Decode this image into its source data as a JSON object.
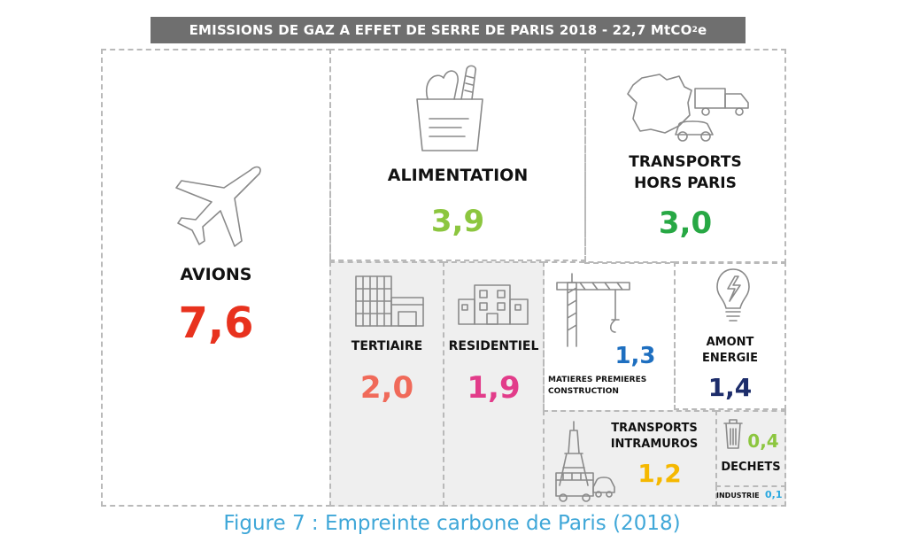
{
  "header": {
    "title_main": "EMISSIONS DE GAZ A EFFET DE SERRE DE PARIS 2018 - 22,7 MtCO",
    "title_sub": "2",
    "title_end": "e"
  },
  "tiles": {
    "avions": {
      "label": "AVIONS",
      "value": "7,6",
      "color": "#e8321e",
      "icon": "airplane-icon"
    },
    "alimentation": {
      "label": "ALIMENTATION",
      "value": "3,9",
      "color": "#8cc63f",
      "icon": "grocery-bag-icon"
    },
    "transports_hors_paris": {
      "label_line1": "TRANSPORTS",
      "label_line2": "HORS PARIS",
      "value": "3,0",
      "color": "#27a844",
      "icon": "france-truck-car-icon"
    },
    "tertiaire": {
      "label": "TERTIAIRE",
      "value": "2,0",
      "color": "#f06a5a",
      "icon": "office-building-icon"
    },
    "residentiel": {
      "label": "RESIDENTIEL",
      "value": "1,9",
      "color": "#e23c8a",
      "icon": "apartment-building-icon"
    },
    "matieres": {
      "label_line1": "MATIERES PREMIERES",
      "label_line2": "CONSTRUCTION",
      "value": "1,3",
      "color": "#1e6fc0",
      "icon": "crane-icon"
    },
    "amont_energie": {
      "label_line1": "AMONT",
      "label_line2": "ENERGIE",
      "value": "1,4",
      "color": "#1d2d6b",
      "icon": "lightbulb-icon"
    },
    "transports_intramuros": {
      "label_line1": "TRANSPORTS",
      "label_line2": "INTRAMUROS",
      "value": "1,2",
      "color": "#f5b800",
      "icon": "eiffel-tower-bus-icon"
    },
    "dechets": {
      "label": "DECHETS",
      "value": "0,4",
      "color": "#8cc63f",
      "icon": "trash-bin-icon"
    },
    "industrie": {
      "label": "INDUSTRIE",
      "value": "0,1",
      "color": "#29a8e0"
    }
  },
  "caption": "Figure 7 : Empreinte carbone de Paris (2018)"
}
